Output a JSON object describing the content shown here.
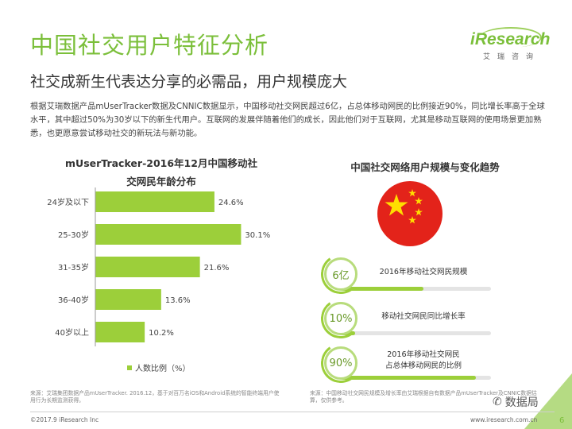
{
  "title": "中国社交用户特征分析",
  "subtitle": "社交成新生代表达分享的必需品，用户规模庞大",
  "body": "根据艾瑞数据产品mUserTracker数据及CNNIC数据显示，中国移动社交网民超过6亿，占总体移动网民的比例接近90%，同比增长率高于全球水平，其中超过50%为30岁以下的新生代用户。互联网的发展伴随着他们的成长，因此他们对于互联网，尤其是移动互联网的使用场景更加熟悉，也更愿意尝试移动社交的新玩法与新功能。",
  "logo": {
    "word": "iResearch",
    "cn": "艾瑞咨询"
  },
  "chart_data": {
    "type": "bar",
    "orientation": "horizontal",
    "title_lines": [
      "mUserTracker-2016年12月中国移动社",
      "交网民年龄分布"
    ],
    "categories": [
      "24岁及以下",
      "25-30岁",
      "31-35岁",
      "36-40岁",
      "40岁以上"
    ],
    "values": [
      24.6,
      30.1,
      21.6,
      13.6,
      10.2
    ],
    "value_labels": [
      "24.6%",
      "30.1%",
      "21.6%",
      "13.6%",
      "10.2%"
    ],
    "xlim": [
      0,
      32
    ],
    "color": "#9ccf3a",
    "legend": "人数比例（%）",
    "legend_position": "bottom"
  },
  "right": {
    "title": "中国社交网络用户规模与变化趋势",
    "kpis": [
      {
        "value": "6亿",
        "label": "2016年移动社交网民规模",
        "progress": 0.55
      },
      {
        "value": "10%",
        "label": "移动社交网民同比增长率",
        "progress": 0.1
      },
      {
        "value": "90%",
        "label": "2016年移动社交网民\n占总体移动网民的比例",
        "progress": 0.9
      }
    ]
  },
  "source_left": "来源：艾瑞集团数据产品mUserTracker. 2016.12，基于对百万名iOS和Android系统的智能终端用户使用行为长期监测获得。",
  "source_right": "来源：中国移动社交网民规模及增长率由艾瑞根据自有数据产品mUserTracker及CNNIC数据估算，仅供参考。",
  "copyright": "©2017.9 iResearch Inc",
  "website": "www.iresearch.com.cn",
  "page_number": "6",
  "watermark": "数据局",
  "colors": {
    "brand_green": "#7bbf3a",
    "bar": "#9ccf3a",
    "flag_red": "#e3231a",
    "flag_star": "#ffde00"
  }
}
